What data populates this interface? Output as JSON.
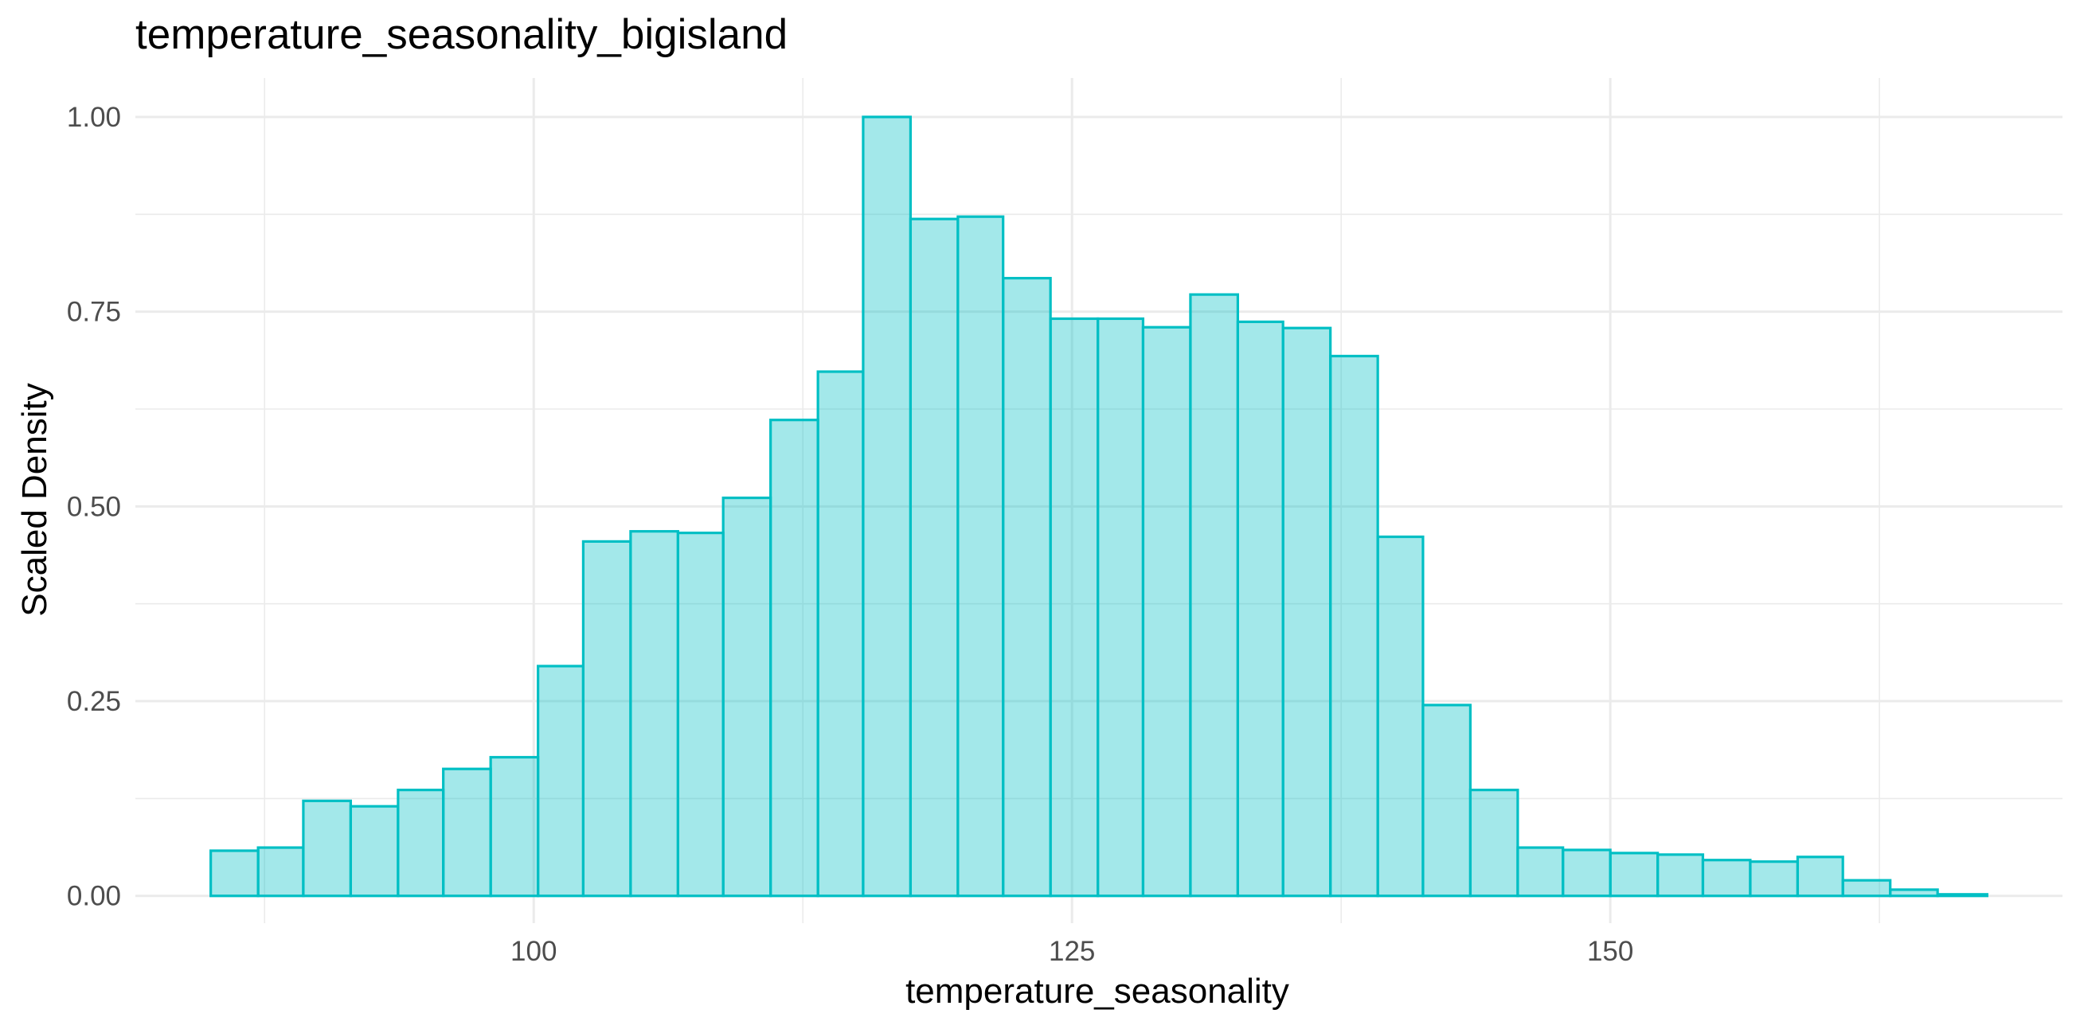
{
  "chart_data": {
    "type": "bar",
    "title": "temperature_seasonality_bigisland",
    "xlabel": "temperature_seasonality",
    "ylabel": "Scaled Density",
    "xlim": [
      81.5,
      171.0
    ],
    "ylim": [
      -0.035,
      1.05
    ],
    "x_ticks": [
      100,
      125,
      150
    ],
    "x_tick_labels": [
      "100",
      "125",
      "150"
    ],
    "y_ticks": [
      0.0,
      0.25,
      0.5,
      0.75,
      1.0
    ],
    "y_tick_labels": [
      "0.00",
      "0.25",
      "0.50",
      "0.75",
      "1.00"
    ],
    "grid": true,
    "legend": "none",
    "bar_fill": "#00bfc4",
    "bar_fill_opacity": 0.36,
    "bar_stroke": "#00bfc4",
    "grid_color": "#ebebeb",
    "bins": [
      {
        "x0": 85.0,
        "x1": 87.2,
        "value": 0.058
      },
      {
        "x0": 87.2,
        "x1": 89.3,
        "value": 0.062
      },
      {
        "x0": 89.3,
        "x1": 91.5,
        "value": 0.122
      },
      {
        "x0": 91.5,
        "x1": 93.7,
        "value": 0.115
      },
      {
        "x0": 93.7,
        "x1": 95.8,
        "value": 0.136
      },
      {
        "x0": 95.8,
        "x1": 98.0,
        "value": 0.163
      },
      {
        "x0": 98.0,
        "x1": 100.2,
        "value": 0.178
      },
      {
        "x0": 100.2,
        "x1": 102.3,
        "value": 0.295
      },
      {
        "x0": 102.3,
        "x1": 104.5,
        "value": 0.455
      },
      {
        "x0": 104.5,
        "x1": 106.7,
        "value": 0.468
      },
      {
        "x0": 106.7,
        "x1": 108.8,
        "value": 0.466
      },
      {
        "x0": 108.8,
        "x1": 111.0,
        "value": 0.511
      },
      {
        "x0": 111.0,
        "x1": 113.2,
        "value": 0.611
      },
      {
        "x0": 113.2,
        "x1": 115.3,
        "value": 0.673
      },
      {
        "x0": 115.3,
        "x1": 117.5,
        "value": 1.0
      },
      {
        "x0": 117.5,
        "x1": 119.7,
        "value": 0.869
      },
      {
        "x0": 119.7,
        "x1": 121.8,
        "value": 0.872
      },
      {
        "x0": 121.8,
        "x1": 124.0,
        "value": 0.793
      },
      {
        "x0": 124.0,
        "x1": 126.2,
        "value": 0.741
      },
      {
        "x0": 126.2,
        "x1": 128.3,
        "value": 0.741
      },
      {
        "x0": 128.3,
        "x1": 130.5,
        "value": 0.73
      },
      {
        "x0": 130.5,
        "x1": 132.7,
        "value": 0.772
      },
      {
        "x0": 132.7,
        "x1": 134.8,
        "value": 0.737
      },
      {
        "x0": 134.8,
        "x1": 137.0,
        "value": 0.729
      },
      {
        "x0": 137.0,
        "x1": 139.2,
        "value": 0.693
      },
      {
        "x0": 139.2,
        "x1": 141.3,
        "value": 0.461
      },
      {
        "x0": 141.3,
        "x1": 143.5,
        "value": 0.245
      },
      {
        "x0": 143.5,
        "x1": 145.7,
        "value": 0.136
      },
      {
        "x0": 145.7,
        "x1": 147.8,
        "value": 0.062
      },
      {
        "x0": 147.8,
        "x1": 150.0,
        "value": 0.059
      },
      {
        "x0": 150.0,
        "x1": 152.2,
        "value": 0.055
      },
      {
        "x0": 152.2,
        "x1": 154.3,
        "value": 0.053
      },
      {
        "x0": 154.3,
        "x1": 156.5,
        "value": 0.046
      },
      {
        "x0": 156.5,
        "x1": 158.7,
        "value": 0.044
      },
      {
        "x0": 158.7,
        "x1": 160.8,
        "value": 0.05
      },
      {
        "x0": 160.8,
        "x1": 163.0,
        "value": 0.02
      },
      {
        "x0": 163.0,
        "x1": 165.2,
        "value": 0.008
      },
      {
        "x0": 165.2,
        "x1": 167.5,
        "value": 0.002
      }
    ]
  }
}
